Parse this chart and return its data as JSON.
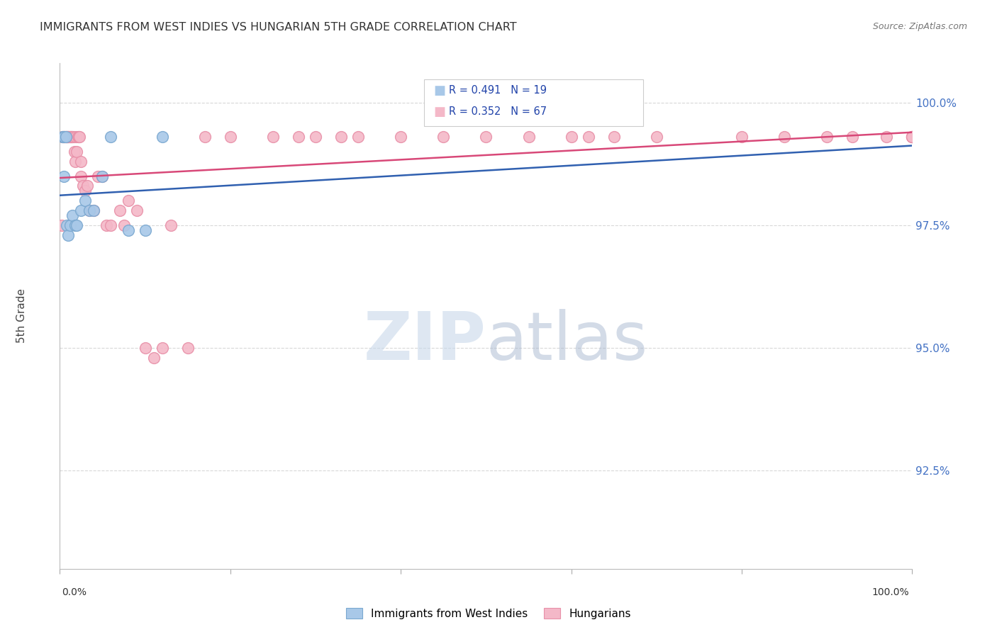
{
  "title": "IMMIGRANTS FROM WEST INDIES VS HUNGARIAN 5TH GRADE CORRELATION CHART",
  "source": "Source: ZipAtlas.com",
  "ylabel": "5th Grade",
  "ylabel_right_ticks": [
    92.5,
    95.0,
    97.5,
    100.0
  ],
  "ylabel_right_labels": [
    "92.5%",
    "95.0%",
    "97.5%",
    "100.0%"
  ],
  "xmin": 0.0,
  "xmax": 100.0,
  "ymin": 90.5,
  "ymax": 100.8,
  "blue_R": 0.491,
  "blue_N": 19,
  "pink_R": 0.352,
  "pink_N": 67,
  "legend_label_blue": "Immigrants from West Indies",
  "legend_label_pink": "Hungarians",
  "blue_color": "#a8c8e8",
  "pink_color": "#f4b8c8",
  "blue_edge_color": "#7aa8d0",
  "pink_edge_color": "#e890a8",
  "blue_line_color": "#3060b0",
  "pink_line_color": "#d84878",
  "title_color": "#333333",
  "source_color": "#777777",
  "watermark_zip_color": "#c8d8ea",
  "watermark_atlas_color": "#a8b8d0",
  "right_axis_color": "#4472C4",
  "grid_color": "#d8d8d8",
  "blue_x": [
    0.3,
    0.5,
    0.5,
    0.7,
    0.8,
    1.0,
    1.2,
    1.5,
    1.8,
    2.0,
    2.5,
    3.0,
    3.5,
    4.0,
    5.0,
    6.0,
    8.0,
    10.0,
    12.0
  ],
  "blue_y": [
    99.3,
    99.3,
    98.5,
    99.3,
    97.5,
    97.3,
    97.5,
    97.7,
    97.5,
    97.5,
    97.8,
    98.0,
    97.8,
    97.8,
    98.5,
    99.3,
    97.4,
    97.4,
    99.3
  ],
  "pink_x": [
    0.2,
    0.3,
    0.5,
    0.5,
    0.6,
    0.7,
    0.8,
    0.9,
    1.0,
    1.0,
    1.1,
    1.2,
    1.3,
    1.4,
    1.5,
    1.6,
    1.7,
    1.8,
    1.9,
    2.0,
    2.1,
    2.2,
    2.3,
    2.5,
    2.5,
    2.7,
    3.0,
    3.2,
    3.5,
    4.0,
    4.5,
    5.0,
    5.5,
    6.0,
    7.0,
    7.5,
    8.0,
    9.0,
    10.0,
    11.0,
    12.0,
    13.0,
    15.0,
    17.0,
    20.0,
    25.0,
    28.0,
    30.0,
    33.0,
    35.0,
    40.0,
    45.0,
    50.0,
    55.0,
    60.0,
    62.0,
    65.0,
    70.0,
    80.0,
    85.0,
    90.0,
    93.0,
    97.0,
    100.0,
    100.0,
    100.0,
    100.0
  ],
  "pink_y": [
    97.5,
    99.3,
    99.3,
    99.3,
    99.3,
    99.3,
    99.3,
    99.3,
    99.3,
    99.3,
    99.3,
    99.3,
    99.3,
    99.3,
    99.3,
    99.3,
    99.0,
    98.8,
    99.3,
    99.0,
    99.3,
    99.3,
    99.3,
    98.5,
    98.8,
    98.3,
    98.2,
    98.3,
    97.8,
    97.8,
    98.5,
    98.5,
    97.5,
    97.5,
    97.8,
    97.5,
    98.0,
    97.8,
    95.0,
    94.8,
    95.0,
    97.5,
    95.0,
    99.3,
    99.3,
    99.3,
    99.3,
    99.3,
    99.3,
    99.3,
    99.3,
    99.3,
    99.3,
    99.3,
    99.3,
    99.3,
    99.3,
    99.3,
    99.3,
    99.3,
    99.3,
    99.3,
    99.3,
    99.3,
    99.3,
    99.3,
    99.3
  ]
}
